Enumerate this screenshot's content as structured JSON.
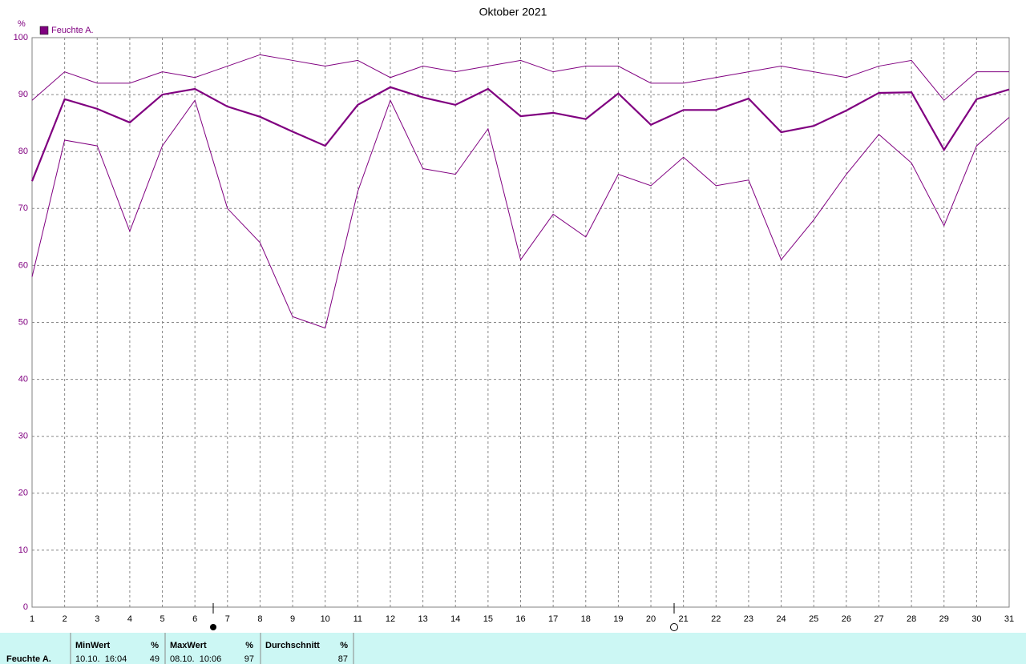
{
  "chart_data": {
    "type": "line",
    "title": "Oktober 2021",
    "y_label": "%",
    "x": [
      1,
      2,
      3,
      4,
      5,
      6,
      7,
      8,
      9,
      10,
      11,
      12,
      13,
      14,
      15,
      16,
      17,
      18,
      19,
      20,
      21,
      22,
      23,
      24,
      25,
      26,
      27,
      28,
      29,
      30,
      31
    ],
    "series": [
      {
        "color": "#800080",
        "values": [
          89,
          94,
          92,
          92,
          94,
          93,
          95,
          97,
          96,
          95,
          96,
          93,
          95,
          94,
          95,
          96,
          94,
          95,
          95,
          92,
          92,
          93,
          94,
          95,
          94,
          93,
          95,
          96,
          89,
          94,
          94
        ]
      },
      {
        "name": "Feuchte A.",
        "color": "#800080",
        "values": [
          74.8,
          89.2,
          87.5,
          85.1,
          90.0,
          91.0,
          87.9,
          86.1,
          83.5,
          81.0,
          88.2,
          91.3,
          89.5,
          88.2,
          91.0,
          86.2,
          86.8,
          85.7,
          90.2,
          84.7,
          87.3,
          87.3,
          89.3,
          83.4,
          84.5,
          87.2,
          90.3,
          90.4,
          80.3,
          89.2,
          90.9
        ]
      },
      {
        "color": "#800080",
        "values": [
          58,
          82,
          81,
          66,
          81,
          89,
          70,
          64,
          51,
          49,
          73,
          89,
          77,
          76,
          84,
          61,
          69,
          65,
          76,
          74,
          79,
          74,
          75,
          61,
          68,
          76,
          83,
          78,
          67,
          81,
          86
        ]
      }
    ],
    "xlim": [
      1,
      31
    ],
    "xticks": [
      1,
      2,
      3,
      4,
      5,
      6,
      7,
      8,
      9,
      10,
      11,
      12,
      13,
      14,
      15,
      16,
      17,
      18,
      19,
      20,
      21,
      22,
      23,
      24,
      25,
      26,
      27,
      28,
      29,
      30,
      31
    ],
    "ylim": [
      0,
      100
    ],
    "yticks": [
      0,
      10,
      20,
      30,
      40,
      50,
      60,
      70,
      80,
      90,
      100
    ],
    "grid": true,
    "legend": "top-left"
  },
  "summary": {
    "row_label": "Feuchte A.",
    "columns": [
      {
        "header": "MinWert",
        "unit": "%",
        "when": "10.10.  16:04",
        "value": 49
      },
      {
        "header": "MaxWert",
        "unit": "%",
        "when": "08.10.  10:06",
        "value": 97
      },
      {
        "header": "Durchschnitt",
        "unit": "%",
        "value": 87
      }
    ]
  }
}
